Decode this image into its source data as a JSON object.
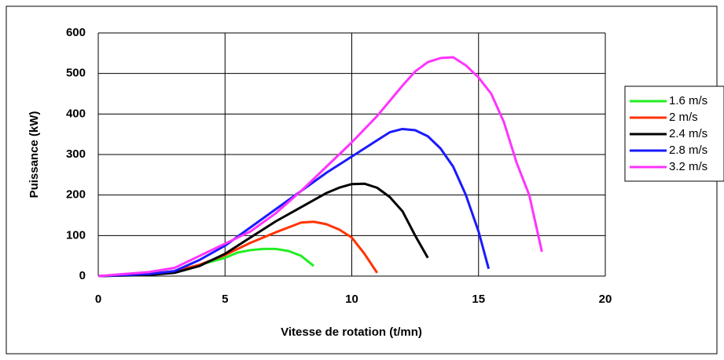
{
  "chart_data": {
    "type": "line",
    "xlabel": "Vitesse de rotation (t/mn)",
    "ylabel": "Puissance (kW)",
    "xlim": [
      0,
      20
    ],
    "xticks": [
      0,
      5,
      10,
      15,
      20
    ],
    "ylim": [
      0,
      600
    ],
    "yticks": [
      0,
      100,
      200,
      300,
      400,
      500,
      600
    ],
    "grid": true,
    "legend": "right",
    "series": [
      {
        "name": "1.6 m/s",
        "color": "#22ee22",
        "x": [
          0,
          1,
          2,
          3,
          4,
          5,
          5.5,
          6,
          6.5,
          7,
          7.5,
          8,
          8.5
        ],
        "values": [
          0,
          2,
          5,
          12,
          28,
          45,
          58,
          64,
          67,
          67,
          62,
          50,
          25
        ]
      },
      {
        "name": "2 m/s",
        "color": "#ff3300",
        "x": [
          0,
          1,
          2,
          3,
          4,
          5,
          6,
          7,
          7.5,
          8,
          8.5,
          9,
          9.5,
          10,
          10.5,
          11
        ],
        "values": [
          0,
          2,
          5,
          12,
          28,
          52,
          82,
          108,
          120,
          132,
          134,
          128,
          115,
          95,
          55,
          8
        ]
      },
      {
        "name": "2.4 m/s",
        "color": "#000000",
        "x": [
          0,
          2,
          3,
          4,
          5,
          6,
          7,
          8,
          9,
          9.5,
          10,
          10.5,
          11,
          11.5,
          12,
          12.5,
          13
        ],
        "values": [
          0,
          3,
          8,
          25,
          55,
          95,
          135,
          170,
          205,
          218,
          227,
          228,
          218,
          195,
          160,
          100,
          45
        ]
      },
      {
        "name": "2.8 m/s",
        "color": "#1a1aff",
        "x": [
          0,
          2,
          3,
          4,
          5,
          6,
          7,
          8,
          9,
          10,
          11,
          11.5,
          12,
          12.5,
          13,
          13.5,
          14,
          14.5,
          15,
          15.4
        ],
        "values": [
          0,
          5,
          12,
          40,
          75,
          120,
          165,
          210,
          255,
          295,
          335,
          355,
          363,
          360,
          345,
          315,
          270,
          200,
          110,
          18
        ]
      },
      {
        "name": "3.2 m/s",
        "color": "#ff33ff",
        "x": [
          0,
          1,
          2,
          3,
          4,
          5,
          6,
          7,
          8,
          9,
          10,
          11,
          12,
          12.5,
          13,
          13.5,
          14,
          14.5,
          15,
          15.5,
          16,
          16.5,
          17,
          17.5
        ],
        "values": [
          0,
          5,
          10,
          20,
          50,
          80,
          110,
          155,
          210,
          270,
          330,
          395,
          470,
          505,
          528,
          538,
          540,
          520,
          490,
          450,
          380,
          280,
          200,
          60
        ]
      }
    ]
  }
}
